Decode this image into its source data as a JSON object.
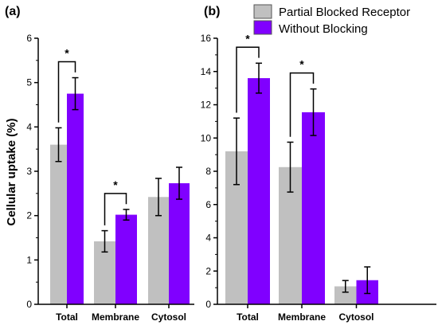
{
  "chart_data": [
    {
      "type": "bar",
      "panel_label": "(a)",
      "categories": [
        "Total",
        "Membrane",
        "Cytosol"
      ],
      "ylabel": "Cellular uptake (%)",
      "ylim": [
        0,
        6
      ],
      "yticks": [
        "0",
        "1",
        "2",
        "3",
        "4",
        "5",
        "6"
      ],
      "series": [
        {
          "name": "Partial Blocked Receptor",
          "color": "#c0c0c0",
          "values": [
            3.6,
            1.42,
            2.42
          ],
          "errors": [
            0.38,
            0.24,
            0.42
          ]
        },
        {
          "name": "Without Blocking",
          "color": "#8000ff",
          "values": [
            4.75,
            2.02,
            2.73
          ],
          "errors": [
            0.36,
            0.12,
            0.36
          ]
        }
      ],
      "significance": [
        {
          "category_index": 0,
          "label": "*"
        },
        {
          "category_index": 1,
          "label": "*"
        }
      ]
    },
    {
      "type": "bar",
      "panel_label": "(b)",
      "categories": [
        "Total",
        "Membrane",
        "Cytosol"
      ],
      "ylim": [
        0,
        16
      ],
      "yticks": [
        "0",
        "2",
        "4",
        "6",
        "8",
        "10",
        "12",
        "14",
        "16"
      ],
      "series": [
        {
          "name": "Partial Blocked Receptor",
          "color": "#c0c0c0",
          "values": [
            9.2,
            8.25,
            1.08
          ],
          "errors": [
            2.0,
            1.5,
            0.35
          ]
        },
        {
          "name": "Without Blocking",
          "color": "#8000ff",
          "values": [
            13.6,
            11.55,
            1.45
          ],
          "errors": [
            0.9,
            1.4,
            0.8
          ]
        }
      ],
      "significance": [
        {
          "category_index": 0,
          "label": "*"
        },
        {
          "category_index": 1,
          "label": "*"
        }
      ],
      "legend": {
        "position": "top",
        "entries": [
          "Partial Blocked Receptor",
          "Without Blocking"
        ]
      }
    }
  ]
}
